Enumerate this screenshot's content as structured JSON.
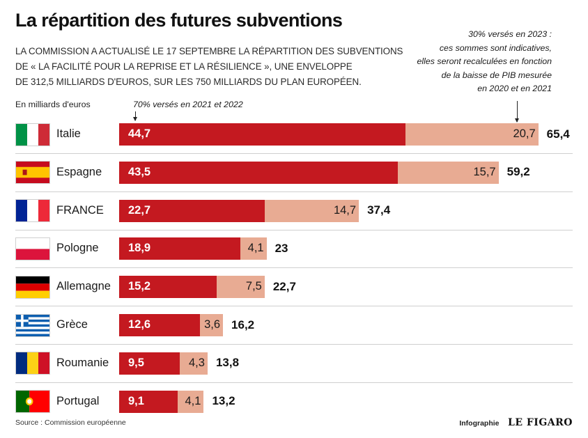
{
  "title": "La répartition des futures subventions",
  "subtitle": [
    "LA COMMISSION A ACTUALISÉ LE 17 SEPTEMBRE LA RÉPARTITION DES SUBVENTIONS",
    "DE « LA FACILITÉ POUR LA REPRISE ET LA RÉSILIENCE », UNE ENVELOPPE",
    "DE 312,5 MILLIARDS D'EUROS, SUR LES 750 MILLIARDS DU PLAN EUROPÉEN."
  ],
  "unit_label": "En milliards d'euros",
  "annotation_first_tranche": "70% versés en 2021 et 2022",
  "annotation_second_tranche": [
    "30% versés en 2023 :",
    "ces sommes sont indicatives,",
    "elles seront recalculées en fonction",
    "de la baisse de PIB mesurée",
    "en 2020 et en 2021"
  ],
  "colors": {
    "first_tranche": "#c41920",
    "second_tranche": "#e8ab93"
  },
  "chart_data": {
    "type": "bar",
    "orientation": "horizontal",
    "stacked": true,
    "categories": [
      "Italie",
      "Espagne",
      "FRANCE",
      "Pologne",
      "Allemagne",
      "Grèce",
      "Roumanie",
      "Portugal"
    ],
    "series": [
      {
        "values": [
          44.7,
          43.5,
          22.7,
          18.9,
          15.2,
          12.6,
          9.5,
          9.1
        ],
        "labels": [
          "44,7",
          "43,5",
          "22,7",
          "18,9",
          "15,2",
          "12,6",
          "9,5",
          "9,1"
        ]
      },
      {
        "values": [
          20.7,
          15.7,
          14.7,
          4.1,
          7.5,
          3.6,
          4.3,
          4.1
        ],
        "labels": [
          "20,7",
          "15,7",
          "14,7",
          "4,1",
          "7,5",
          "3,6",
          "4,3",
          "4,1"
        ]
      }
    ],
    "totals": [
      "65,4",
      "59,2",
      "37,4",
      "23",
      "22,7",
      "16,2",
      "13,8",
      "13,2"
    ],
    "flags": [
      "italy-flag",
      "spain-flag",
      "france-flag",
      "poland-flag",
      "germany-flag",
      "greece-flag",
      "romania-flag",
      "portugal-flag"
    ],
    "xlim": [
      0,
      65.4
    ],
    "grid": false,
    "legend": "none"
  },
  "footer": {
    "source": "Source : Commission européenne",
    "infographie": "Infographie",
    "brand": "LE FIGARO"
  }
}
